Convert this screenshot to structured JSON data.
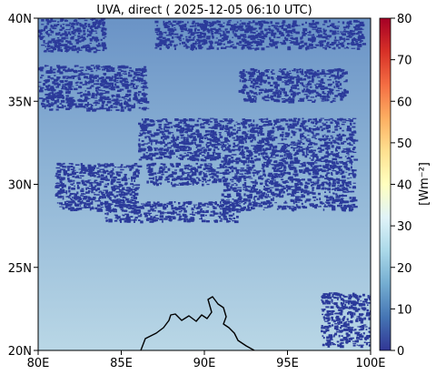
{
  "title": "UVA, direct ( 2025-12-05 06:10 UTC)",
  "map": {
    "lon_range": [
      80,
      100
    ],
    "lat_range": [
      20,
      40
    ],
    "x_ticks": [
      "80E",
      "85E",
      "90E",
      "95E",
      "100E"
    ],
    "y_ticks": [
      "20N",
      "25N",
      "30N",
      "35N",
      "40N"
    ],
    "field_colors": {
      "north": "#6a93c6",
      "middle": "#8db3d5",
      "south": "#b9d7e6"
    },
    "cloud_color": "#2b3a9a",
    "cloud_bands": [
      {
        "lon": [
          80,
          86.5
        ],
        "lat": [
          34.5,
          37.2
        ]
      },
      {
        "lon": [
          81,
          86
        ],
        "lat": [
          28.5,
          31.3
        ]
      },
      {
        "lon": [
          86.5,
          91
        ],
        "lat": [
          30.0,
          31.3
        ]
      },
      {
        "lon": [
          84,
          92
        ],
        "lat": [
          27.8,
          29.0
        ]
      },
      {
        "lon": [
          86,
          99
        ],
        "lat": [
          31.5,
          34.0
        ]
      },
      {
        "lon": [
          91,
          99
        ],
        "lat": [
          28.5,
          31.5
        ]
      },
      {
        "lon": [
          92,
          98.5
        ],
        "lat": [
          35.0,
          37.0
        ]
      },
      {
        "lon": [
          87,
          99.5
        ],
        "lat": [
          38.2,
          39.9
        ]
      },
      {
        "lon": [
          80,
          84
        ],
        "lat": [
          38.0,
          40.0
        ]
      },
      {
        "lon": [
          97,
          100
        ],
        "lat": [
          20.3,
          23.5
        ]
      }
    ]
  },
  "colorbar": {
    "label": "[Wm⁻²]",
    "ticks": [
      0,
      10,
      20,
      30,
      40,
      50,
      60,
      70,
      80
    ],
    "range": [
      0,
      80
    ],
    "colormap": [
      "#313695",
      "#4575b4",
      "#74add1",
      "#abd9e9",
      "#e0f3f8",
      "#ffffbf",
      "#fee090",
      "#fdae61",
      "#f46d43",
      "#d73027",
      "#a50026"
    ]
  }
}
